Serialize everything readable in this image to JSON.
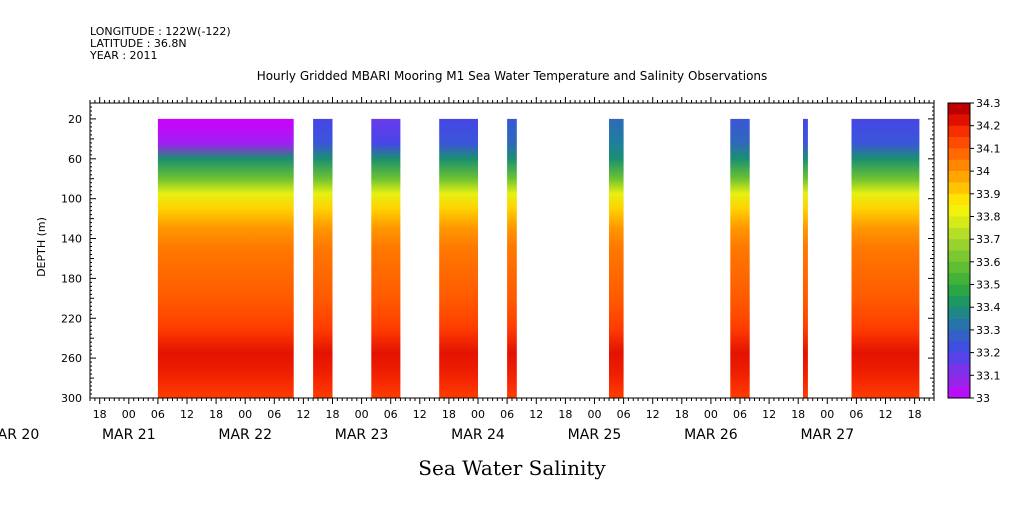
{
  "header": {
    "longitude": "LONGITUDE : 122W(-122)",
    "latitude": "LATITUDE : 36.8N",
    "year": "YEAR : 2011"
  },
  "chart_data": {
    "type": "heatmap",
    "title": "Hourly Gridded MBARI Mooring M1 Sea Water Temperature and Salinity Observations",
    "subtitle": "Sea Water Salinity",
    "xlabel": "",
    "ylabel": "DEPTH (m)",
    "x_hours_range": [
      "MAR 20 16:00",
      "MAR 27 22:00"
    ],
    "y_range": [
      300,
      4
    ],
    "y_ticks": [
      20,
      60,
      100,
      140,
      180,
      220,
      260,
      300
    ],
    "x_ticks": [
      "18",
      "00",
      "06",
      "12",
      "18",
      "00",
      "06",
      "12",
      "18",
      "00",
      "06",
      "12",
      "18",
      "00",
      "06",
      "12",
      "18",
      "00",
      "06",
      "12",
      "18",
      "00",
      "06",
      "12",
      "18",
      "00",
      "06",
      "12",
      "18"
    ],
    "date_labels": [
      "MAR 20",
      "MAR 21",
      "MAR 22",
      "MAR 23",
      "MAR 24",
      "MAR 25",
      "MAR 26",
      "MAR 27"
    ],
    "colorbar": {
      "min": 33.0,
      "max": 34.3,
      "step": 0.05,
      "labels": [
        "34.3",
        "34.2",
        "34.1",
        "34",
        "33.9",
        "33.8",
        "33.7",
        "33.6",
        "33.5",
        "33.4",
        "33.3",
        "33.2",
        "33.1",
        "33"
      ]
    },
    "data_segments": [
      {
        "start": "MAR 21 06:00",
        "end": "MAR 22 10:00",
        "top_salinity": 33.0
      },
      {
        "start": "MAR 22 14:00",
        "end": "MAR 22 18:00",
        "top_salinity": 33.2
      },
      {
        "start": "MAR 23 02:00",
        "end": "MAR 23 08:00",
        "top_salinity": 33.15
      },
      {
        "start": "MAR 23 16:00",
        "end": "MAR 24 00:00",
        "top_salinity": 33.2
      },
      {
        "start": "MAR 24 06:00",
        "end": "MAR 24 08:00",
        "top_salinity": 33.25
      },
      {
        "start": "MAR 25 03:00",
        "end": "MAR 25 06:00",
        "top_salinity": 33.3
      },
      {
        "start": "MAR 26 04:00",
        "end": "MAR 26 08:00",
        "top_salinity": 33.25
      },
      {
        "start": "MAR 26 19:00",
        "end": "MAR 26 20:00",
        "top_salinity": 33.2
      },
      {
        "start": "MAR 27 05:00",
        "end": "MAR 27 19:00",
        "top_salinity": 33.2
      }
    ],
    "depth_profile": [
      {
        "depth": 4,
        "salinity": 33.2
      },
      {
        "depth": 20,
        "salinity": 33.2
      },
      {
        "depth": 45,
        "salinity": 33.25
      },
      {
        "depth": 60,
        "salinity": 33.4
      },
      {
        "depth": 80,
        "salinity": 33.6
      },
      {
        "depth": 95,
        "salinity": 33.8
      },
      {
        "depth": 110,
        "salinity": 33.9
      },
      {
        "depth": 130,
        "salinity": 34.0
      },
      {
        "depth": 150,
        "salinity": 34.05
      },
      {
        "depth": 200,
        "salinity": 34.1
      },
      {
        "depth": 230,
        "salinity": 34.15
      },
      {
        "depth": 255,
        "salinity": 34.22
      },
      {
        "depth": 275,
        "salinity": 34.2
      },
      {
        "depth": 300,
        "salinity": 34.15
      }
    ]
  }
}
